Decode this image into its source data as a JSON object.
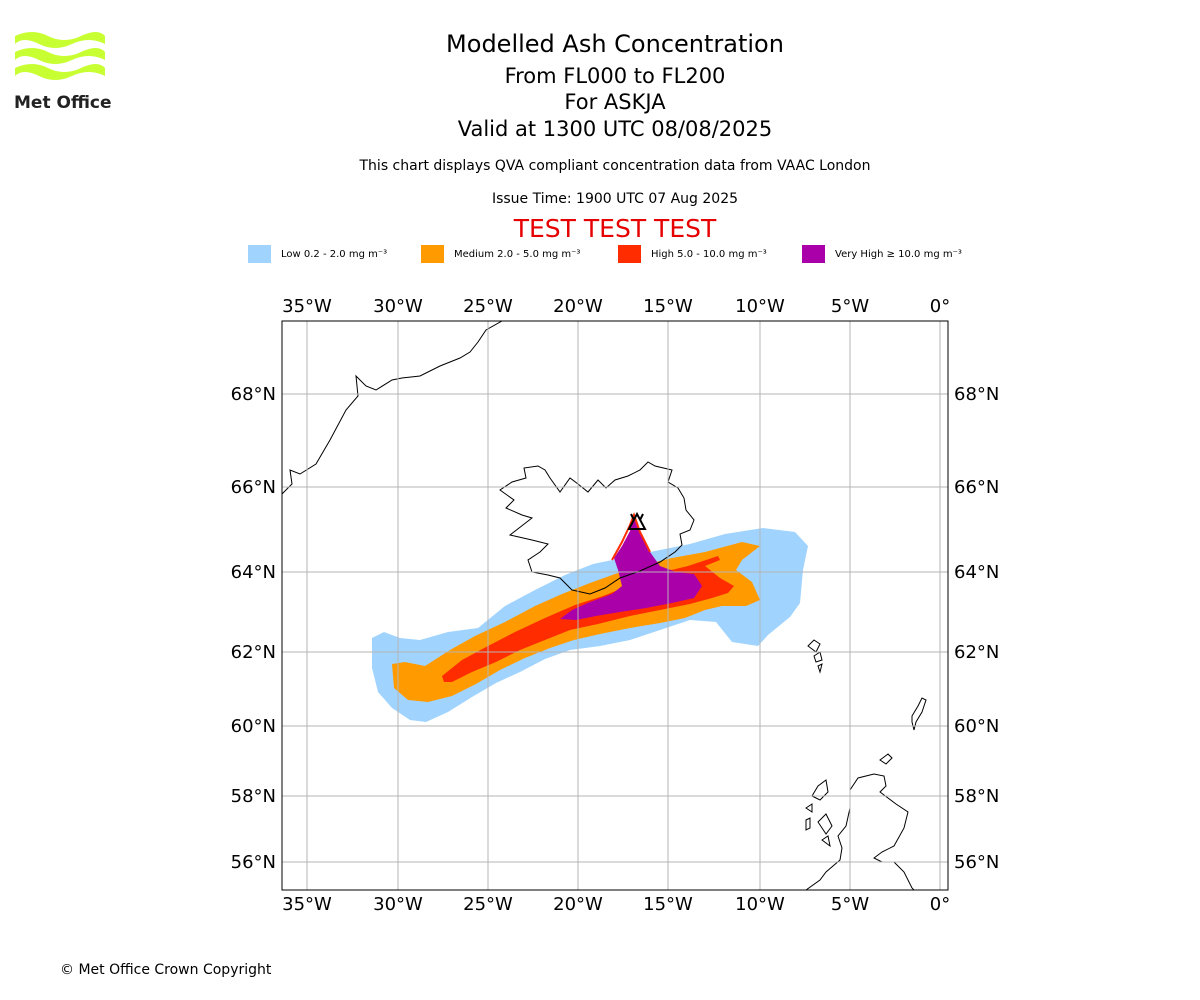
{
  "logo": {
    "name": "Met Office",
    "color": "#c8ff33"
  },
  "header": {
    "title": "Modelled Ash Concentration",
    "levels": "From FL000 to FL200",
    "volcano": "For ASKJA",
    "valid": "Valid at 1300 UTC 08/08/2025",
    "note": "This chart displays QVA compliant concentration data from VAAC London",
    "issue_time": "Issue Time: 1900 UTC 07 Aug 2025",
    "test_banner": "TEST TEST TEST"
  },
  "legend": [
    {
      "label": "Low 0.2 - 2.0 mg m⁻³",
      "color": "#a0d4ff"
    },
    {
      "label": "Medium 2.0 - 5.0 mg m⁻³",
      "color": "#ff9b00"
    },
    {
      "label": "High 5.0 - 10.0 mg m⁻³",
      "color": "#ff2c00"
    },
    {
      "label": "Very High ≥ 10.0 mg m⁻³",
      "color": "#aa00aa"
    }
  ],
  "map": {
    "lon_labels": [
      "35°W",
      "30°W",
      "25°W",
      "20°W",
      "15°W",
      "10°W",
      "5°W",
      "0°"
    ],
    "lat_labels": [
      "68°N",
      "66°N",
      "64°N",
      "62°N",
      "60°N",
      "58°N",
      "56°N"
    ],
    "volcano_marker": "ASKJA summit triangle"
  },
  "footer": {
    "copyright": "© Met Office Crown Copyright"
  }
}
